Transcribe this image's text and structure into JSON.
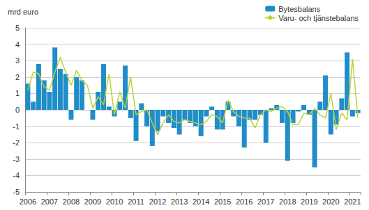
{
  "chart_data": {
    "type": "bar",
    "title": "mrd euro",
    "categories": [
      "2006",
      null,
      null,
      null,
      "2007",
      null,
      null,
      null,
      "2008",
      null,
      null,
      null,
      "2009",
      null,
      null,
      null,
      "2010",
      null,
      null,
      null,
      "2011",
      null,
      null,
      null,
      "2012",
      null,
      null,
      null,
      "2013",
      null,
      null,
      null,
      "2014",
      null,
      null,
      null,
      "2015",
      null,
      null,
      null,
      "2016",
      null,
      null,
      null,
      "2017",
      null,
      null,
      null,
      "2018",
      null,
      null,
      null,
      "2019",
      null,
      null,
      null,
      "2020",
      null,
      null,
      null,
      "2021",
      null
    ],
    "series": [
      {
        "name": "Bytesbalans",
        "type": "bar",
        "color": "#1f8dc9",
        "values": [
          1.6,
          0.5,
          2.8,
          1.8,
          1.1,
          3.8,
          2.5,
          2.2,
          -0.6,
          2.0,
          1.8,
          0.0,
          -0.6,
          1.1,
          2.8,
          0.2,
          -0.4,
          0.5,
          2.7,
          -0.5,
          -1.9,
          0.4,
          -1.0,
          -2.2,
          -1.3,
          -0.4,
          -0.8,
          -1.1,
          -1.5,
          -0.6,
          -0.8,
          -1.0,
          -1.6,
          -0.4,
          0.2,
          -1.2,
          -1.2,
          0.5,
          -0.4,
          -1.0,
          -2.3,
          -0.6,
          -0.6,
          -0.3,
          -2.0,
          0.1,
          0.3,
          -0.8,
          -3.1,
          -0.8,
          -0.1,
          0.3,
          -0.3,
          -3.5,
          0.5,
          2.1,
          -1.5,
          -0.9,
          0.7,
          3.5,
          -0.4,
          -0.2
        ]
      },
      {
        "name": "Varu- och tjänstebalans",
        "type": "line",
        "color": "#b9d432",
        "values": [
          1.2,
          2.3,
          2.2,
          1.4,
          1.2,
          2.3,
          3.2,
          2.3,
          1.5,
          2.4,
          1.8,
          1.5,
          0.1,
          0.8,
          0.3,
          2.2,
          -0.3,
          1.1,
          0.1,
          2.0,
          -0.3,
          -0.1,
          0.0,
          -0.8,
          -1.5,
          -0.8,
          -0.3,
          -0.7,
          -0.8,
          -0.6,
          -0.7,
          -0.8,
          -0.9,
          -0.7,
          -0.3,
          -0.4,
          -0.8,
          0.6,
          -0.1,
          -0.4,
          -0.5,
          -0.5,
          -1.1,
          -0.3,
          0.0,
          -0.1,
          0.1,
          0.2,
          -0.1,
          -0.9,
          -0.9,
          -0.2,
          -0.3,
          0.1,
          -0.3,
          -0.5,
          1.0,
          -1.2,
          -0.2,
          -0.6,
          3.1,
          -0.5
        ]
      }
    ],
    "ylim": [
      -5,
      5
    ],
    "yticks": [
      -5,
      -4,
      -3,
      -2,
      -1,
      0,
      1,
      2,
      3,
      4,
      5
    ],
    "grid": true,
    "legend": "upper right"
  }
}
